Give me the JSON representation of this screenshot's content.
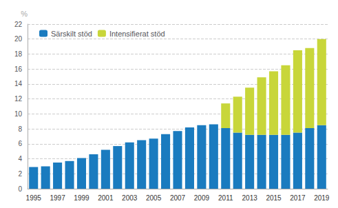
{
  "chart_data": {
    "type": "bar",
    "categories": [
      "1995",
      null,
      "1997",
      null,
      "1999",
      null,
      "2001",
      null,
      "2003",
      null,
      "2005",
      null,
      "2007",
      null,
      "2009",
      null,
      "2011",
      null,
      "2013",
      null,
      "2015",
      null,
      "2017",
      null,
      "2019"
    ],
    "series": [
      {
        "name": "Särskilt stöd",
        "color": "#1a7bbf",
        "values": [
          2.9,
          3.0,
          3.5,
          3.7,
          4.1,
          4.6,
          5.2,
          5.7,
          6.2,
          6.5,
          6.7,
          7.3,
          7.7,
          8.2,
          8.5,
          8.6,
          8.1,
          7.5,
          7.2,
          7.2,
          7.2,
          7.2,
          7.5,
          8.1,
          8.5
        ]
      },
      {
        "name": "Intensifierat stöd",
        "color": "#c8d63a",
        "values": [
          0.0,
          0.0,
          0.0,
          0.0,
          0.0,
          0.0,
          0.0,
          0.0,
          0.0,
          0.0,
          0.0,
          0.0,
          0.0,
          0.0,
          0.0,
          0.0,
          3.3,
          4.8,
          6.3,
          7.7,
          8.5,
          9.3,
          11.0,
          10.7,
          11.5
        ]
      }
    ],
    "stacked": true,
    "ylabel": "%",
    "ylim": [
      0,
      22
    ],
    "yticks": [
      0,
      2,
      4,
      6,
      8,
      10,
      12,
      14,
      16,
      18,
      20,
      22
    ],
    "grid": true,
    "legend": "upper left"
  }
}
